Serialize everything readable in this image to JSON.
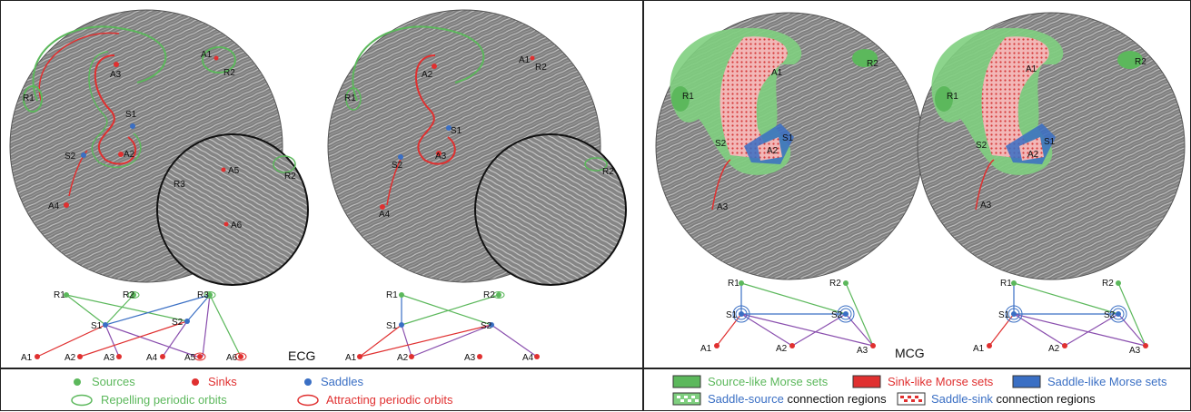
{
  "colors": {
    "source": "#5cb85c",
    "sink": "#e03030",
    "saddle": "#3a6fc4",
    "repelling": "#5cb85c",
    "attracting": "#e03030",
    "field": "#8a8a8a",
    "border": "#222222"
  },
  "ecg": {
    "title": "ECG",
    "field_left": {
      "labels": [
        "A1",
        "R2",
        "A3",
        "R1",
        "S1",
        "S2",
        "A2",
        "A4"
      ]
    },
    "field_left_zoom": {
      "labels": [
        "A5",
        "R3",
        "R2",
        "A6"
      ]
    },
    "field_right": {
      "labels": [
        "A1",
        "R2",
        "A2",
        "R1",
        "S1",
        "S2",
        "A3",
        "A4"
      ]
    },
    "graph_left": {
      "labels": [
        "R1",
        "R2",
        "R3",
        "S1",
        "S2",
        "A1",
        "A2",
        "A3",
        "A4",
        "A5",
        "A6"
      ]
    },
    "graph_right": {
      "labels": [
        "R1",
        "R2",
        "S1",
        "S2",
        "A1",
        "A2",
        "A3",
        "A4"
      ]
    }
  },
  "mcg": {
    "title": "MCG",
    "field_left": {
      "labels": [
        "A1",
        "R2",
        "R1",
        "S2",
        "S1",
        "A2",
        "A3"
      ]
    },
    "field_right": {
      "labels": [
        "A1",
        "R2",
        "R1",
        "S2",
        "S1",
        "A2",
        "A3"
      ]
    },
    "graph_left": {
      "labels": [
        "R1",
        "R2",
        "S1",
        "S2",
        "A1",
        "A2",
        "A3"
      ]
    },
    "graph_right": {
      "labels": [
        "R1",
        "R2",
        "S1",
        "S2",
        "A1",
        "A2",
        "A3"
      ]
    }
  },
  "legend": {
    "sources": "Sources",
    "sinks": "Sinks",
    "saddles": "Saddles",
    "repelling": "Repelling periodic orbits",
    "attracting": "Attracting periodic orbits",
    "source_like": "Source-like Morse sets",
    "sink_like": "Sink-like Morse sets",
    "saddle_like": "Saddle-like Morse sets",
    "saddle_source_a": "Saddle-source",
    "saddle_source_b": " connection regions",
    "saddle_sink_a": "Saddle-sink",
    "saddle_sink_b": " connection regions"
  }
}
